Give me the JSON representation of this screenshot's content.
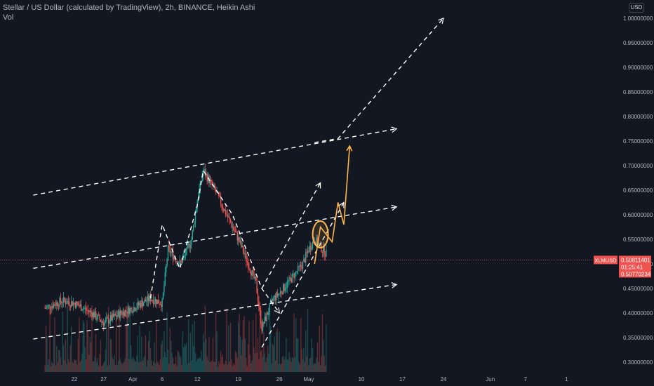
{
  "header": {
    "title": "Stellar / US Dollar (calculated by TradingView), 2h, BINANCE, Heikin Ashi",
    "volume_label": "Vol",
    "currency_badge": "USD"
  },
  "colors": {
    "background": "#131722",
    "bullish": "#26a69a",
    "bearish": "#ef5350",
    "projection": "#ffb74d",
    "trendline": "#ffffff",
    "axis_text": "#b2b5be"
  },
  "chart_data": {
    "type": "candlestick",
    "symbol": "XLMUSD",
    "ylim": [
      0.29,
      1.02
    ],
    "y_scale": "linear",
    "grid": false,
    "y_ticks": [
      "1.00000000",
      "0.95000000",
      "0.90000000",
      "0.85000000",
      "0.80000000",
      "0.75000000",
      "0.70000000",
      "0.65000000",
      "0.60000000",
      "0.55000000",
      "0.50000000",
      "0.45000000",
      "0.40000000",
      "0.35000000",
      "0.30000000"
    ],
    "y_tick_values": [
      1.0,
      0.95,
      0.9,
      0.85,
      0.8,
      0.75,
      0.7,
      0.65,
      0.6,
      0.55,
      0.5,
      0.45,
      0.4,
      0.35,
      0.3
    ],
    "x_ticks": [
      "22",
      "27",
      "Apr",
      "6",
      "12",
      "19",
      "26",
      "May",
      "10",
      "17",
      "24",
      "Jun",
      "7",
      "1"
    ],
    "x_tick_dates": [
      "2021-03-22",
      "2021-03-27",
      "2021-04-01",
      "2021-04-06",
      "2021-04-12",
      "2021-04-19",
      "2021-04-26",
      "2021-05-01",
      "2021-05-10",
      "2021-05-17",
      "2021-05-24",
      "2021-06-01",
      "2021-06-07",
      "2021-06-14"
    ],
    "price_series": [
      {
        "x": "2021-03-17",
        "y": 0.41
      },
      {
        "x": "2021-03-20",
        "y": 0.425
      },
      {
        "x": "2021-03-22",
        "y": 0.42
      },
      {
        "x": "2021-03-25",
        "y": 0.4
      },
      {
        "x": "2021-03-27",
        "y": 0.38
      },
      {
        "x": "2021-03-30",
        "y": 0.4
      },
      {
        "x": "2021-04-01",
        "y": 0.41
      },
      {
        "x": "2021-04-04",
        "y": 0.43
      },
      {
        "x": "2021-04-06",
        "y": 0.42
      },
      {
        "x": "2021-04-07",
        "y": 0.53
      },
      {
        "x": "2021-04-09",
        "y": 0.5
      },
      {
        "x": "2021-04-10",
        "y": 0.52
      },
      {
        "x": "2021-04-11",
        "y": 0.55
      },
      {
        "x": "2021-04-12",
        "y": 0.63
      },
      {
        "x": "2021-04-13",
        "y": 0.69
      },
      {
        "x": "2021-04-15",
        "y": 0.65
      },
      {
        "x": "2021-04-17",
        "y": 0.6
      },
      {
        "x": "2021-04-19",
        "y": 0.55
      },
      {
        "x": "2021-04-20",
        "y": 0.52
      },
      {
        "x": "2021-04-22",
        "y": 0.46
      },
      {
        "x": "2021-04-23",
        "y": 0.37
      },
      {
        "x": "2021-04-25",
        "y": 0.43
      },
      {
        "x": "2021-04-26",
        "y": 0.44
      },
      {
        "x": "2021-04-28",
        "y": 0.47
      },
      {
        "x": "2021-04-30",
        "y": 0.5
      },
      {
        "x": "2021-05-01",
        "y": 0.53
      },
      {
        "x": "2021-05-02",
        "y": 0.55
      },
      {
        "x": "2021-05-04",
        "y": 0.52
      }
    ],
    "volume_ylim": [
      0,
      1
    ],
    "price_lines": [
      {
        "label": "XLMUSD",
        "value": "0.50811401",
        "time": "01:25:41",
        "y": 0.508
      },
      {
        "label": "",
        "value": "0.50770234",
        "y": 0.5077
      }
    ],
    "trend_lines": [
      {
        "points": [
          {
            "x": "2021-03-15",
            "y": 0.64
          },
          {
            "x": "2021-05-16",
            "y": 0.775
          }
        ]
      },
      {
        "points": [
          {
            "x": "2021-03-15",
            "y": 0.491
          },
          {
            "x": "2021-05-16",
            "y": 0.616
          }
        ]
      },
      {
        "points": [
          {
            "x": "2021-03-15",
            "y": 0.347
          },
          {
            "x": "2021-05-16",
            "y": 0.458
          }
        ]
      },
      {
        "points": [
          {
            "x": "2021-04-04",
            "y": 0.43
          },
          {
            "x": "2021-04-06",
            "y": 0.58
          },
          {
            "x": "2021-04-09",
            "y": 0.49
          },
          {
            "x": "2021-04-12",
            "y": 0.62
          },
          {
            "x": "2021-04-13",
            "y": 0.69
          },
          {
            "x": "2021-04-18",
            "y": 0.6
          },
          {
            "x": "2021-04-20",
            "y": 0.54
          },
          {
            "x": "2021-04-23",
            "y": 0.45
          },
          {
            "x": "2021-04-26",
            "y": 0.4
          }
        ]
      },
      {
        "points": [
          {
            "x": "2021-04-23",
            "y": 0.33
          },
          {
            "x": "2021-05-07",
            "y": 0.625
          }
        ]
      },
      {
        "points": [
          {
            "x": "2021-04-23",
            "y": 0.45
          },
          {
            "x": "2021-05-03",
            "y": 0.665
          }
        ]
      },
      {
        "points": [
          {
            "x": "2021-05-02",
            "y": 0.747
          },
          {
            "x": "2021-05-06",
            "y": 0.755
          },
          {
            "x": "2021-05-24",
            "y": 1.0
          }
        ]
      }
    ],
    "projection_path": [
      {
        "x": "2021-05-02",
        "y": 0.5
      },
      {
        "x": "2021-05-03",
        "y": 0.575
      },
      {
        "x": "2021-05-05",
        "y": 0.545
      },
      {
        "x": "2021-05-06",
        "y": 0.625
      },
      {
        "x": "2021-05-07",
        "y": 0.58
      },
      {
        "x": "2021-05-08",
        "y": 0.74
      }
    ],
    "highlight": {
      "x": "2021-05-03",
      "y": 0.56
    }
  }
}
